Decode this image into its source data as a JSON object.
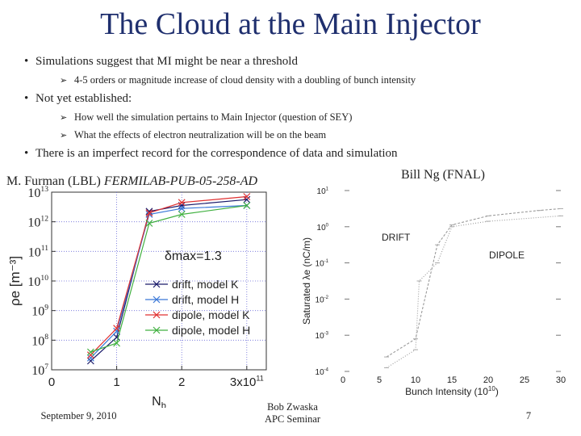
{
  "slide": {
    "title": "The Cloud at the Main Injector",
    "bullets": [
      {
        "text": "Simulations suggest that MI might be near a threshold",
        "subs": [
          "4-5 orders or magnitude increase of cloud density with a doubling of bunch intensity"
        ]
      },
      {
        "text": "Not yet established:",
        "subs": [
          "How well the simulation pertains to Main Injector (question of SEY)",
          "What the effects of electron neutralization will be on the beam"
        ]
      },
      {
        "text": "There is an imperfect record for the correspondence of data and simulation",
        "subs": []
      }
    ],
    "left_caption_author": "M. Furman (LBL) ",
    "left_caption_ref": "FERMILAB-PUB-05-258-AD",
    "right_caption": "Bill Ng (FNAL)",
    "footer_date": "September 9, 2010",
    "footer_presenter_line1": "Bob Zwaska",
    "footer_presenter_line2": "APC Seminar",
    "page_number": "7"
  },
  "chart_data": [
    {
      "type": "line",
      "xlabel": "N",
      "xlabel_sub": "b",
      "ylabel": "ρe  [m⁻³]",
      "x_ticks": [
        "0",
        "1",
        "2",
        "3x10"
      ],
      "x_tick_exp": "11",
      "y_ticks": [
        "10",
        "10",
        "10",
        "10",
        "10",
        "10",
        "10"
      ],
      "y_tick_exps": [
        "7",
        "8",
        "9",
        "10",
        "11",
        "12",
        "13"
      ],
      "xlim": [
        0,
        3.3
      ],
      "ylim_log10": [
        7,
        13
      ],
      "annotation": "δmax=1.3",
      "series": [
        {
          "name": "drift, model K",
          "color": "#1a1a6a",
          "x": [
            0.6,
            1.0,
            1.5,
            2.0,
            3.0
          ],
          "log10_y": [
            7.3,
            8.1,
            12.35,
            12.55,
            12.75
          ]
        },
        {
          "name": "drift, model H",
          "color": "#3a78d8",
          "x": [
            0.6,
            1.0,
            1.5,
            2.0,
            3.0
          ],
          "log10_y": [
            7.4,
            8.3,
            12.25,
            12.45,
            12.55
          ]
        },
        {
          "name": "dipole, model K",
          "color": "#e03030",
          "x": [
            0.6,
            1.0,
            1.5,
            2.0,
            3.0
          ],
          "log10_y": [
            7.5,
            8.4,
            12.3,
            12.65,
            12.85
          ]
        },
        {
          "name": "dipole, model H",
          "color": "#40b040",
          "x": [
            0.6,
            1.0,
            1.5,
            2.0,
            3.0
          ],
          "log10_y": [
            7.6,
            7.9,
            11.95,
            12.25,
            12.55
          ]
        }
      ]
    },
    {
      "type": "line",
      "xlabel": "Bunch Intensity  (10",
      "xlabel_exp": "10",
      "xlabel_end": ")",
      "ylabel": "Saturated λe (nC/m)",
      "x_ticks": [
        "0",
        "5",
        "10",
        "15",
        "20",
        "25",
        "30"
      ],
      "y_ticks": [
        "10",
        "10",
        "10",
        "10",
        "10",
        "10"
      ],
      "y_tick_exps": [
        "1",
        "0",
        "-1",
        "-2",
        "-3",
        "-4"
      ],
      "xlim": [
        0,
        30
      ],
      "ylim_log10": [
        -4,
        1
      ],
      "annotations": [
        "DRIFT",
        "DIPOLE"
      ],
      "series": [
        {
          "name": "DRIFT",
          "x": [
            6,
            10,
            13,
            15,
            20,
            27,
            30
          ],
          "log10_y": [
            -3.6,
            -3.1,
            -0.5,
            0.05,
            0.3,
            0.45,
            0.5
          ]
        },
        {
          "name": "DIPOLE",
          "x": [
            6,
            10,
            10.5,
            13,
            15,
            20,
            30
          ],
          "log10_y": [
            -3.9,
            -3.4,
            -1.5,
            -1.0,
            0.0,
            0.15,
            0.3
          ]
        }
      ]
    }
  ]
}
